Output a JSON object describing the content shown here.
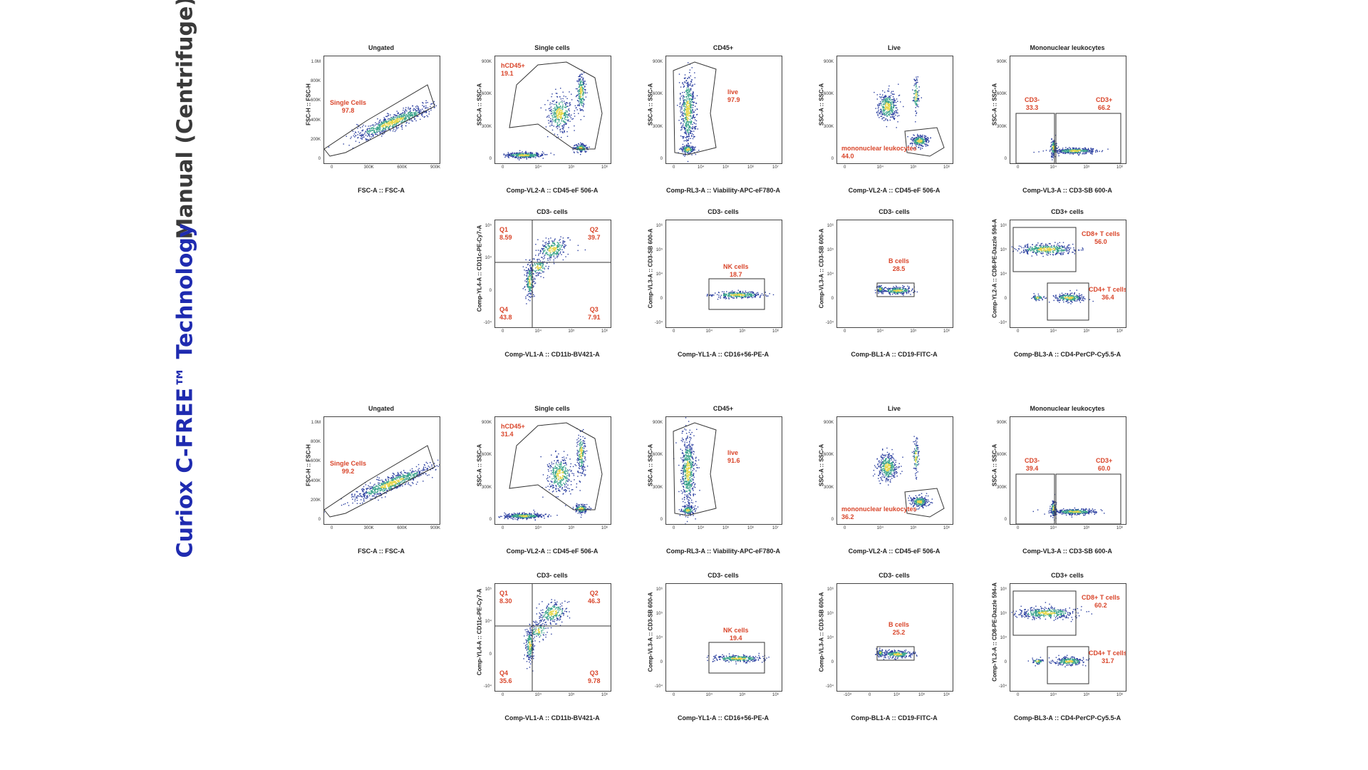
{
  "sections": {
    "manual": "Manual (Centrifuge)",
    "curiox": "Curiox C-FREE™ Technology"
  },
  "manual": {
    "p1": {
      "title": "Ungated",
      "xlabel": "FSC-A :: FSC-A",
      "ylabel": "FSC-H :: FSC-H",
      "xticks": [
        "0",
        "300K",
        "600K",
        "900K"
      ],
      "yticks": [
        "1.0M",
        "800K",
        "600K",
        "400K",
        "200K",
        "0"
      ],
      "gate_name": "Single Cells",
      "gate_value": "97.8"
    },
    "p2": {
      "title": "Single cells",
      "xlabel": "Comp-VL2-A :: CD45-eF 506-A",
      "ylabel": "SSC-A :: SSC-A",
      "xticks": [
        "0",
        "10⁴",
        "10⁵",
        "10⁶"
      ],
      "yticks": [
        "900K",
        "600K",
        "300K",
        "0"
      ],
      "gate_name": "hCD45+",
      "gate_value": "19.1"
    },
    "p3": {
      "title": "CD45+",
      "xlabel": "Comp-RL3-A :: Viability-APC-eF780-A",
      "ylabel": "SSC-A :: SSC-A",
      "xticks": [
        "0",
        "10⁴",
        "10⁵",
        "10⁶",
        "10⁷"
      ],
      "yticks": [
        "900K",
        "600K",
        "300K",
        "0"
      ],
      "gate_name": "live",
      "gate_value": "97.9"
    },
    "p4": {
      "title": "Live",
      "xlabel": "Comp-VL2-A :: CD45-eF 506-A",
      "ylabel": "SSC-A :: SSC-A",
      "xticks": [
        "0",
        "10⁴",
        "10⁵",
        "10⁶"
      ],
      "yticks": [
        "900K",
        "600K",
        "300K",
        "0"
      ],
      "gate_name": "mononuclear leukocytes",
      "gate_value": "44.0"
    },
    "p5": {
      "title": "Mononuclear leukocytes",
      "xlabel": "Comp-VL3-A :: CD3-SB 600-A",
      "ylabel": "SSC-A :: SSC-A",
      "xticks": [
        "0",
        "10⁴",
        "10⁵",
        "10⁶"
      ],
      "yticks": [
        "900K",
        "600K",
        "300K",
        "0"
      ],
      "gate1_name": "CD3-",
      "gate1_value": "33.3",
      "gate2_name": "CD3+",
      "gate2_value": "66.2"
    },
    "p6": {
      "title": "CD3- cells",
      "xlabel": "Comp-VL1-A :: CD11b-BV421-A",
      "ylabel": "Comp-YL4-A :: CD11c-PE-Cy7-A",
      "xticks": [
        "0",
        "10⁴",
        "10⁵",
        "10⁶"
      ],
      "yticks": [
        "10⁵",
        "10⁴",
        "0",
        "-10⁴"
      ],
      "q1": "Q1",
      "q1v": "8.59",
      "q2": "Q2",
      "q2v": "39.7",
      "q3": "Q3",
      "q3v": "7.91",
      "q4": "Q4",
      "q4v": "43.8"
    },
    "p7": {
      "title": "CD3- cells",
      "xlabel": "Comp-YL1-A :: CD16+56-PE-A",
      "ylabel": "Comp-VL3-A :: CD3-SB 600-A",
      "xticks": [
        "0",
        "10⁴",
        "10⁵",
        "10⁶"
      ],
      "yticks": [
        "10⁶",
        "10⁵",
        "10⁴",
        "0",
        "-10⁴"
      ],
      "gate_name": "NK cells",
      "gate_value": "18.7"
    },
    "p8": {
      "title": "CD3- cells",
      "xlabel": "Comp-BL1-A :: CD19-FITC-A",
      "ylabel": "Comp-VL3-A :: CD3-SB 600-A",
      "xticks": [
        "0",
        "10⁴",
        "10⁵",
        "10⁶"
      ],
      "yticks": [
        "10⁶",
        "10⁵",
        "10⁴",
        "0",
        "-10⁴"
      ],
      "gate_name": "B cells",
      "gate_value": "28.5"
    },
    "p9": {
      "title": "CD3+ cells",
      "xlabel": "Comp-BL3-A :: CD4-PerCP-Cy5.5-A",
      "ylabel": "Comp-YL2-A :: CD8-PE-Dazzle 594-A",
      "xticks": [
        "0",
        "10⁴",
        "10⁵",
        "10⁶"
      ],
      "yticks": [
        "10⁶",
        "10⁵",
        "10⁴",
        "0",
        "-10⁴"
      ],
      "gate1_name": "CD8+ T cells",
      "gate1_value": "56.0",
      "gate2_name": "CD4+ T cells",
      "gate2_value": "36.4"
    }
  },
  "curiox": {
    "p1": {
      "title": "Ungated",
      "xlabel": "FSC-A :: FSC-A",
      "ylabel": "FSC-H :: FSC-H",
      "xticks": [
        "0",
        "300K",
        "600K",
        "900K"
      ],
      "yticks": [
        "1.0M",
        "800K",
        "600K",
        "400K",
        "200K",
        "0"
      ],
      "gate_name": "Single Cells",
      "gate_value": "99.2"
    },
    "p2": {
      "title": "Single cells",
      "xlabel": "Comp-VL2-A :: CD45-eF 506-A",
      "ylabel": "SSC-A :: SSC-A",
      "xticks": [
        "0",
        "10⁴",
        "10⁵",
        "10⁶"
      ],
      "yticks": [
        "900K",
        "600K",
        "300K",
        "0"
      ],
      "gate_name": "hCD45+",
      "gate_value": "31.4"
    },
    "p3": {
      "title": "CD45+",
      "xlabel": "Comp-RL3-A :: Viability-APC-eF780-A",
      "ylabel": "SSC-A :: SSC-A",
      "xticks": [
        "0",
        "10⁴",
        "10⁵",
        "10⁶",
        "10⁷"
      ],
      "yticks": [
        "900K",
        "600K",
        "300K",
        "0"
      ],
      "gate_name": "live",
      "gate_value": "91.6"
    },
    "p4": {
      "title": "Live",
      "xlabel": "Comp-VL2-A :: CD45-eF 506-A",
      "ylabel": "SSC-A :: SSC-A",
      "xticks": [
        "0",
        "10⁴",
        "10⁵",
        "10⁶"
      ],
      "yticks": [
        "900K",
        "600K",
        "300K",
        "0"
      ],
      "gate_name": "mononuclear leukocytes",
      "gate_value": "36.2"
    },
    "p5": {
      "title": "Mononuclear leukocytes",
      "xlabel": "Comp-VL3-A :: CD3-SB 600-A",
      "ylabel": "SSC-A :: SSC-A",
      "xticks": [
        "0",
        "10⁴",
        "10⁵",
        "10⁶"
      ],
      "yticks": [
        "900K",
        "600K",
        "300K",
        "0"
      ],
      "gate1_name": "CD3-",
      "gate1_value": "39.4",
      "gate2_name": "CD3+",
      "gate2_value": "60.0"
    },
    "p6": {
      "title": "CD3- cells",
      "xlabel": "Comp-VL1-A :: CD11b-BV421-A",
      "ylabel": "Comp-YL4-A :: CD11c-PE-Cy7-A",
      "xticks": [
        "0",
        "10⁴",
        "10⁵",
        "10⁶"
      ],
      "yticks": [
        "10⁵",
        "10⁴",
        "0",
        "-10⁴"
      ],
      "q1": "Q1",
      "q1v": "8.30",
      "q2": "Q2",
      "q2v": "46.3",
      "q3": "Q3",
      "q3v": "9.78",
      "q4": "Q4",
      "q4v": "35.6"
    },
    "p7": {
      "title": "CD3- cells",
      "xlabel": "Comp-YL1-A :: CD16+56-PE-A",
      "ylabel": "Comp-VL3-A :: CD3-SB 600-A",
      "xticks": [
        "0",
        "10⁴",
        "10⁵",
        "10⁶"
      ],
      "yticks": [
        "10⁶",
        "10⁵",
        "10⁴",
        "0",
        "-10⁴"
      ],
      "gate_name": "NK cells",
      "gate_value": "19.4"
    },
    "p8": {
      "title": "CD3- cells",
      "xlabel": "Comp-BL1-A :: CD19-FITC-A",
      "ylabel": "Comp-VL3-A :: CD3-SB 600-A",
      "xticks": [
        "-10⁴",
        "0",
        "10⁴",
        "10⁵",
        "10⁶"
      ],
      "yticks": [
        "10⁶",
        "10⁵",
        "10⁴",
        "0",
        "-10⁴"
      ],
      "gate_name": "B cells",
      "gate_value": "25.2"
    },
    "p9": {
      "title": "CD3+ cells",
      "xlabel": "Comp-BL3-A :: CD4-PerCP-Cy5.5-A",
      "ylabel": "Comp-YL2-A :: CD8-PE-Dazzle 594-A",
      "xticks": [
        "0",
        "10⁴",
        "10⁵",
        "10⁶"
      ],
      "yticks": [
        "10⁶",
        "10⁵",
        "10⁴",
        "0",
        "-10⁴"
      ],
      "gate1_name": "CD8+ T cells",
      "gate1_value": "60.2",
      "gate2_name": "CD4+ T cells",
      "gate2_value": "31.7"
    }
  },
  "colors": {
    "gate_label": "#d9452a",
    "manual_title": "#3a3a3a",
    "curiox_title": "#1f2bb0",
    "dot": "#2b3fa0",
    "dense": "#3aa38a",
    "core": "#e8d84a"
  }
}
